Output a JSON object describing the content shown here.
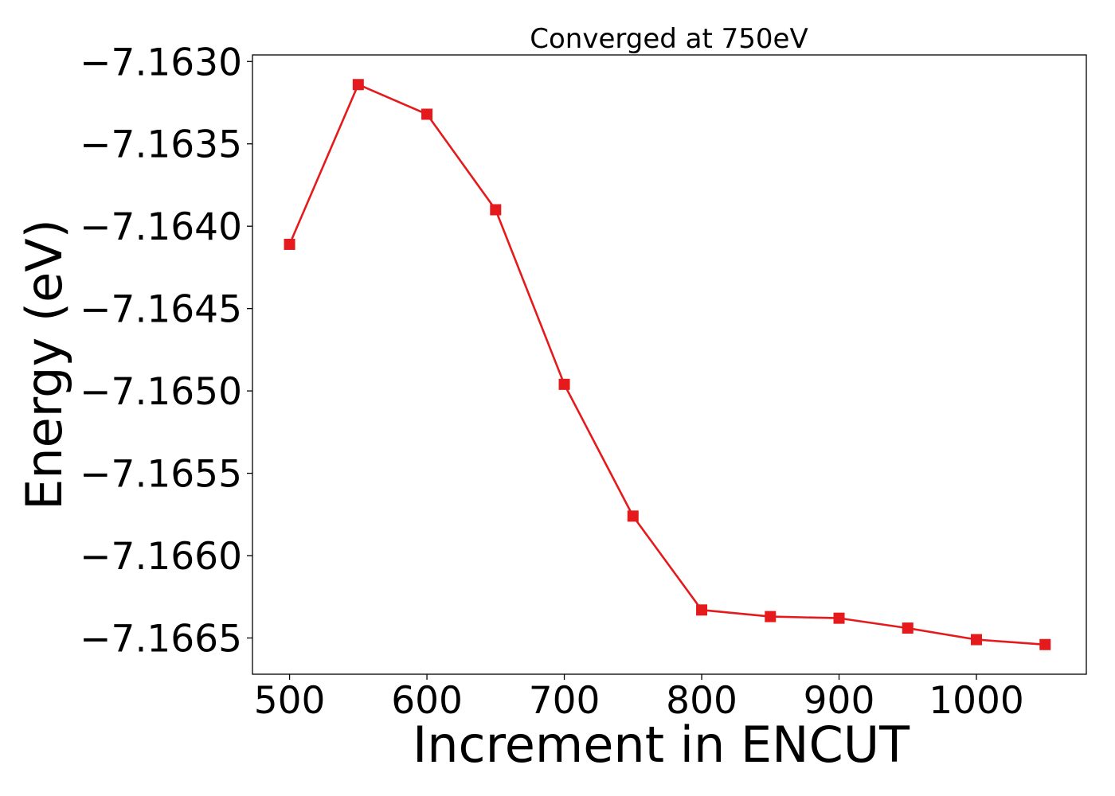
{
  "chart_data": {
    "type": "line",
    "title": "Converged at 750eV",
    "xlabel": "Increment in ENCUT",
    "ylabel": "Energy (eV)",
    "xlim": [
      473,
      1080
    ],
    "ylim": [
      -7.16672,
      -7.16296
    ],
    "xticks": [
      500,
      600,
      700,
      800,
      900,
      1000
    ],
    "yticks": [
      -7.163,
      -7.1635,
      -7.164,
      -7.1645,
      -7.165,
      -7.1655,
      -7.166,
      -7.1665
    ],
    "ytick_labels": [
      "−7.1630",
      "−7.1635",
      "−7.1640",
      "−7.1645",
      "−7.1650",
      "−7.1655",
      "−7.1660",
      "−7.1665"
    ],
    "grid": false,
    "legend": "none",
    "series": [
      {
        "color": "#e41a1c",
        "marker": "square",
        "x": [
          500,
          550,
          600,
          650,
          700,
          750,
          800,
          850,
          900,
          950,
          1000,
          1050
        ],
        "y": [
          -7.16411,
          -7.16314,
          -7.16332,
          -7.1639,
          -7.16496,
          -7.16576,
          -7.16633,
          -7.16637,
          -7.16638,
          -7.16644,
          -7.16651,
          -7.16654
        ]
      }
    ]
  }
}
